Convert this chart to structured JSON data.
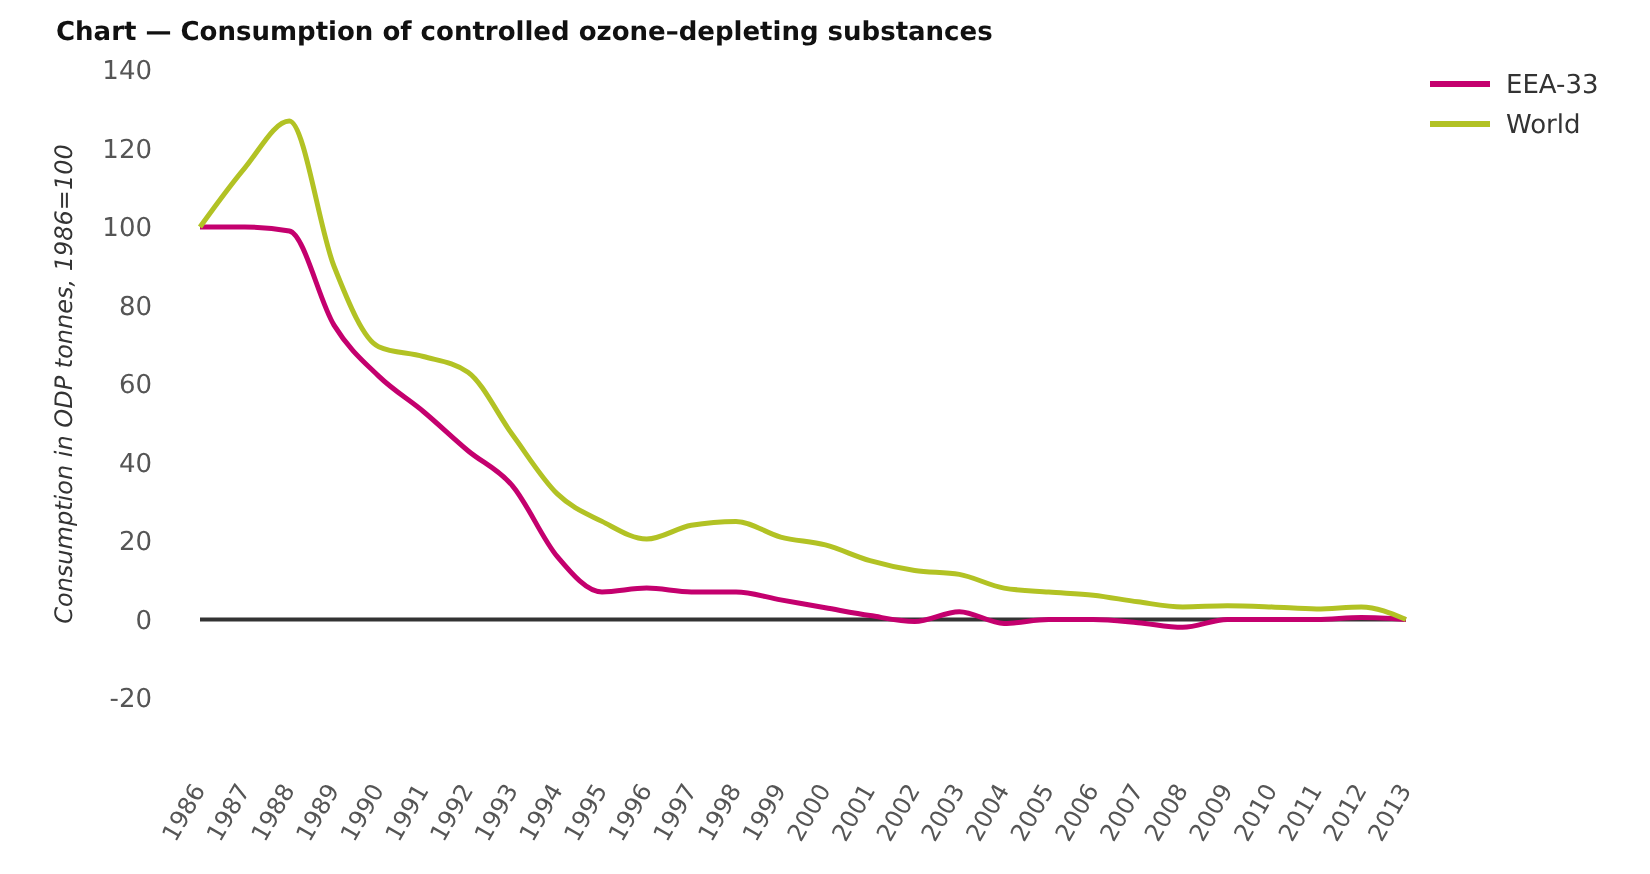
{
  "chart_data": {
    "type": "line",
    "title": "Chart — Consumption of controlled ozone–depleting substances",
    "ylabel": "Consumption in ODP tonnes, 1986=100",
    "categories": [
      "1986",
      "1987",
      "1988",
      "1989",
      "1990",
      "1991",
      "1992",
      "1993",
      "1994",
      "1995",
      "1996",
      "1997",
      "1998",
      "1999",
      "2000",
      "2001",
      "2002",
      "2003",
      "2004",
      "2005",
      "2006",
      "2007",
      "2008",
      "2009",
      "2010",
      "2011",
      "2012",
      "2013"
    ],
    "series": [
      {
        "name": "EEA-33",
        "color": "#c4006e",
        "values": [
          100,
          100,
          99,
          75,
          62,
          53,
          43,
          34,
          16,
          7,
          8,
          7,
          7,
          5,
          3,
          1,
          -0.5,
          2,
          -1,
          0,
          0,
          -0.8,
          -2,
          0,
          0,
          0,
          0.5,
          0
        ]
      },
      {
        "name": "World",
        "color": "#b2c224",
        "values": [
          100,
          115,
          127,
          90,
          69.5,
          67,
          63,
          47,
          32,
          25,
          20.5,
          24,
          25,
          21,
          19,
          15,
          12.5,
          11.5,
          8,
          7,
          6.2,
          4.5,
          3.2,
          3.5,
          3.2,
          2.7,
          3.2,
          0
        ]
      }
    ],
    "ylim": [
      -20,
      140
    ],
    "yticks": [
      -20,
      0,
      20,
      40,
      60,
      80,
      100,
      120,
      140
    ],
    "ref_lines": [
      {
        "axis": "y",
        "value": 0,
        "color": "#333333"
      }
    ],
    "legend": "top right",
    "grid": false
  }
}
